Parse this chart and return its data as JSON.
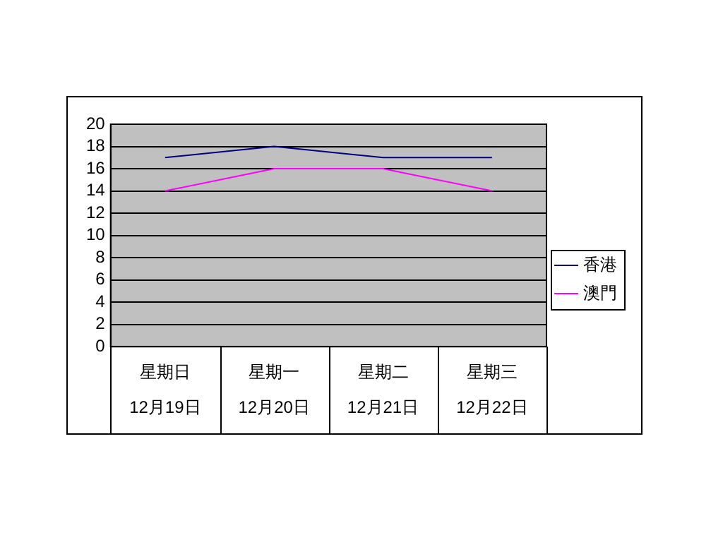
{
  "chart_data": {
    "type": "line",
    "categories": [
      "星期日\n12月19日",
      "星期一\n12月20日",
      "星期二\n12月21日",
      "星期三\n12月22日"
    ],
    "series": [
      {
        "name": "香港",
        "color": "#000080",
        "values": [
          17,
          18,
          17,
          17
        ]
      },
      {
        "name": "澳門",
        "color": "#ff00ff",
        "values": [
          14,
          16,
          16,
          14
        ]
      }
    ],
    "ylim": [
      0,
      20
    ],
    "yticks": [
      0,
      2,
      4,
      6,
      8,
      10,
      12,
      14,
      16,
      18,
      20
    ],
    "grid": "y",
    "legend": "right",
    "marker": "none"
  }
}
